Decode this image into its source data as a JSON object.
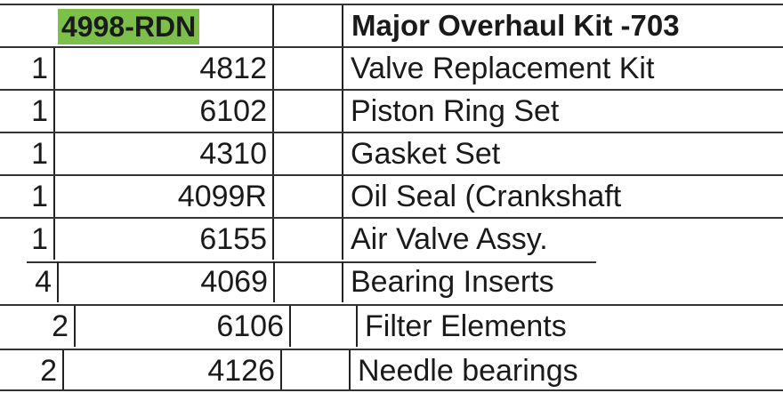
{
  "header": {
    "kit_number": "4998-RDN",
    "kit_title": "Major Overhaul Kit -703",
    "highlight_color": "#7cc04b"
  },
  "rows": [
    {
      "qty": "1",
      "part": "4812",
      "description": "Valve Replacement Kit"
    },
    {
      "qty": "1",
      "part": "6102",
      "description": "Piston Ring Set"
    },
    {
      "qty": "1",
      "part": "4310",
      "description": "Gasket Set"
    },
    {
      "qty": "1",
      "part": "4099R",
      "description": "Oil Seal (Crankshaft"
    },
    {
      "qty": "1",
      "part": "6155",
      "description": "Air Valve Assy."
    },
    {
      "qty": "4",
      "part": "4069",
      "description": "Bearing Inserts"
    },
    {
      "qty": "2",
      "part": "6106",
      "description": "Filter Elements"
    },
    {
      "qty": "2",
      "part": "4126",
      "description": "Needle bearings"
    }
  ]
}
